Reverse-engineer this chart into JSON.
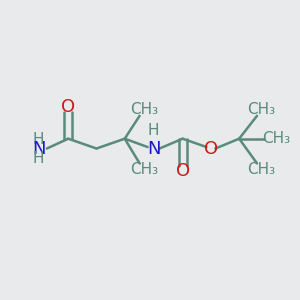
{
  "background_color": "#e8eaeb",
  "bond_color": "#5a8a7a",
  "N_color": "#1a1acc",
  "O_color": "#cc1a1a",
  "font_size": 13,
  "small_font_size": 11,
  "figsize": [
    3.0,
    3.0
  ],
  "dpi": 100,
  "xlim": [
    0,
    10
  ],
  "ylim": [
    0,
    10
  ]
}
